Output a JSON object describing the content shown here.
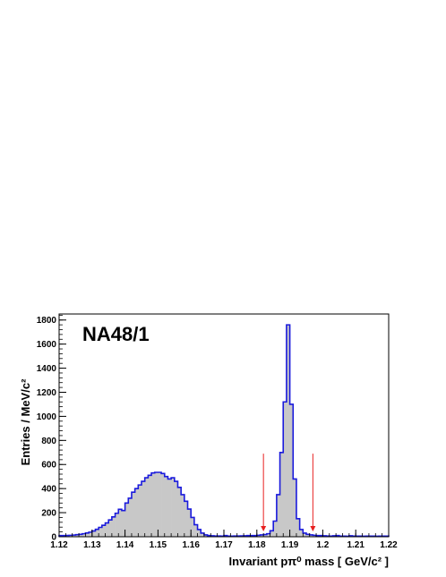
{
  "chart_data": {
    "type": "histogram",
    "annotation": "NA48/1",
    "xlabel": "Invariant pπ⁰ mass [ GeV/c² ]",
    "ylabel": "Entries / MeV/c²",
    "xlim": [
      1.12,
      1.22
    ],
    "ylim": [
      0,
      1850
    ],
    "x_ticks": [
      "1.12",
      "1.13",
      "1.14",
      "1.15",
      "1.16",
      "1.17",
      "1.18",
      "1.19",
      "1.2",
      "1.21",
      "1.22"
    ],
    "y_ticks": [
      "0",
      "200",
      "400",
      "600",
      "800",
      "1000",
      "1200",
      "1400",
      "1600",
      "1800"
    ],
    "bin_width": 0.001,
    "bin_start": 1.12,
    "values": [
      10,
      10,
      11,
      12,
      14,
      17,
      20,
      25,
      31,
      38,
      48,
      62,
      78,
      95,
      115,
      140,
      165,
      195,
      228,
      218,
      280,
      320,
      370,
      400,
      430,
      460,
      490,
      510,
      530,
      535,
      535,
      525,
      500,
      480,
      490,
      460,
      410,
      350,
      295,
      230,
      160,
      100,
      60,
      30,
      15,
      10,
      8,
      6,
      6,
      5,
      10,
      5,
      5,
      6,
      6,
      7,
      8,
      10,
      10,
      10,
      12,
      15,
      18,
      25,
      50,
      130,
      350,
      700,
      1120,
      1760,
      1100,
      480,
      150,
      60,
      30,
      20,
      15,
      12,
      10,
      10,
      8,
      6,
      5,
      8,
      10,
      5,
      5,
      4,
      8,
      5,
      5,
      5,
      4,
      5,
      5,
      5,
      4,
      5,
      5,
      5
    ],
    "markers": [
      {
        "x": 1.182,
        "y_top": 690,
        "color": "#e82020"
      },
      {
        "x": 1.197,
        "y_top": 690,
        "color": "#e82020"
      }
    ],
    "colors": {
      "fill": "#c8c8c8",
      "line": "#1a1adc",
      "frame": "#000000"
    },
    "grid": false
  }
}
